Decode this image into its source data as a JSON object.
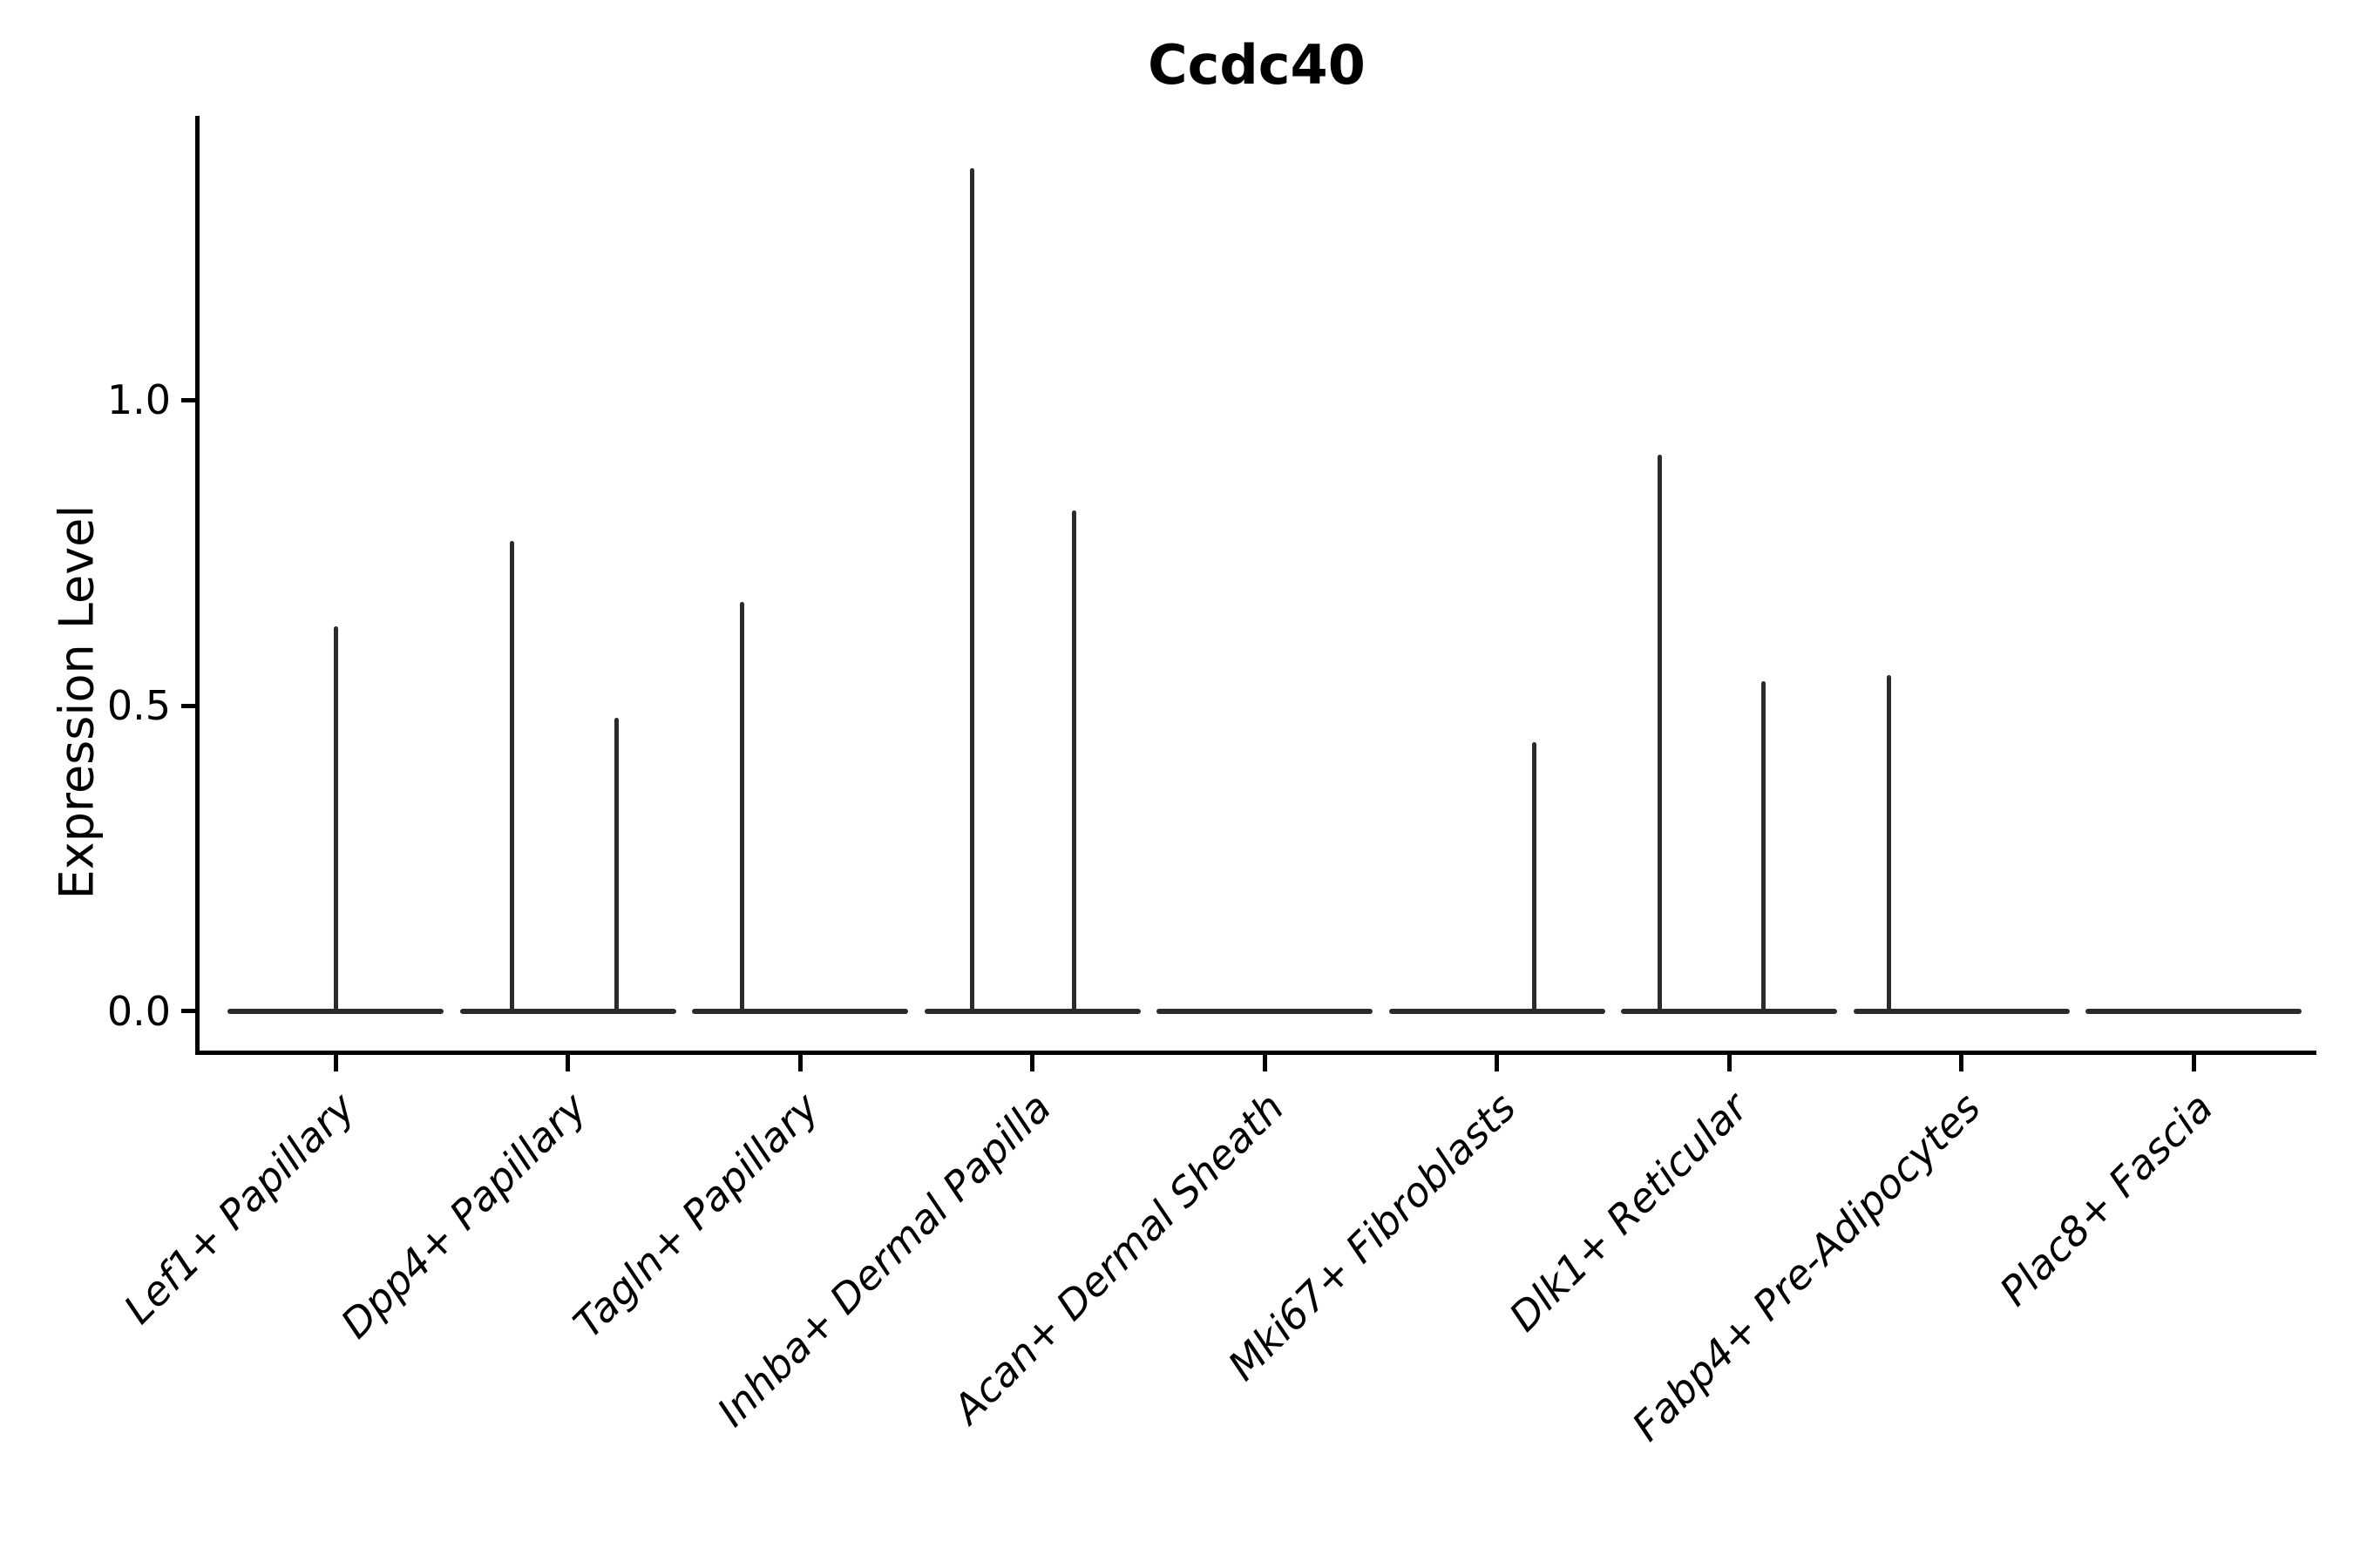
{
  "figure": {
    "title": "Ccdc40",
    "background_color": "#ffffff"
  },
  "chart_data": {
    "type": "violin",
    "title": "Ccdc40",
    "xlabel": "",
    "ylabel": "Expression Level",
    "ylim": [
      -0.067,
      1.462
    ],
    "y_ticks": [
      0.0,
      0.5,
      1.0
    ],
    "y_tick_labels": [
      "0.0",
      "0.5",
      "1.0"
    ],
    "grid": false,
    "legend": "none",
    "x_tick_rotation_deg": 45,
    "violin_color": "#2b2b2b",
    "axis_color": "#000000",
    "categories": [
      "Lef1+ Papillary",
      "Dpp4+ Papillary",
      "Tagln+ Papillary",
      "Inhba+ Dermal Papilla",
      "Acan+ Dermal Sheath",
      "Mki67+ Fibroblasts",
      "Dlk1+ Reticular",
      "Fabp4+ Pre-Adipocytes",
      "Plac8+ Fascia"
    ],
    "series": [
      {
        "category": "Lef1+ Papillary",
        "baseline_value": 0.0,
        "spikes": [
          {
            "value": 0.63,
            "x_offset": 0.0
          }
        ]
      },
      {
        "category": "Dpp4+ Papillary",
        "baseline_value": 0.0,
        "spikes": [
          {
            "value": 0.77,
            "x_offset": -0.24
          },
          {
            "value": 0.48,
            "x_offset": 0.21
          }
        ]
      },
      {
        "category": "Tagln+ Papillary",
        "baseline_value": 0.0,
        "spikes": [
          {
            "value": 0.67,
            "x_offset": -0.25
          }
        ]
      },
      {
        "category": "Inhba+ Dermal Papilla",
        "baseline_value": 0.0,
        "spikes": [
          {
            "value": 1.38,
            "x_offset": -0.26
          },
          {
            "value": 0.82,
            "x_offset": 0.18
          }
        ]
      },
      {
        "category": "Acan+ Dermal Sheath",
        "baseline_value": 0.0,
        "spikes": []
      },
      {
        "category": "Mki67+ Fibroblasts",
        "baseline_value": 0.0,
        "spikes": [
          {
            "value": 0.44,
            "x_offset": 0.16
          }
        ]
      },
      {
        "category": "Dlk1+ Reticular",
        "baseline_value": 0.0,
        "spikes": [
          {
            "value": 0.91,
            "x_offset": -0.3
          },
          {
            "value": 0.54,
            "x_offset": 0.15
          }
        ]
      },
      {
        "category": "Fabp4+ Pre-Adipocytes",
        "baseline_value": 0.0,
        "spikes": [
          {
            "value": 0.55,
            "x_offset": -0.31
          }
        ]
      },
      {
        "category": "Plac8+ Fascia",
        "baseline_value": 0.0,
        "spikes": []
      }
    ]
  }
}
